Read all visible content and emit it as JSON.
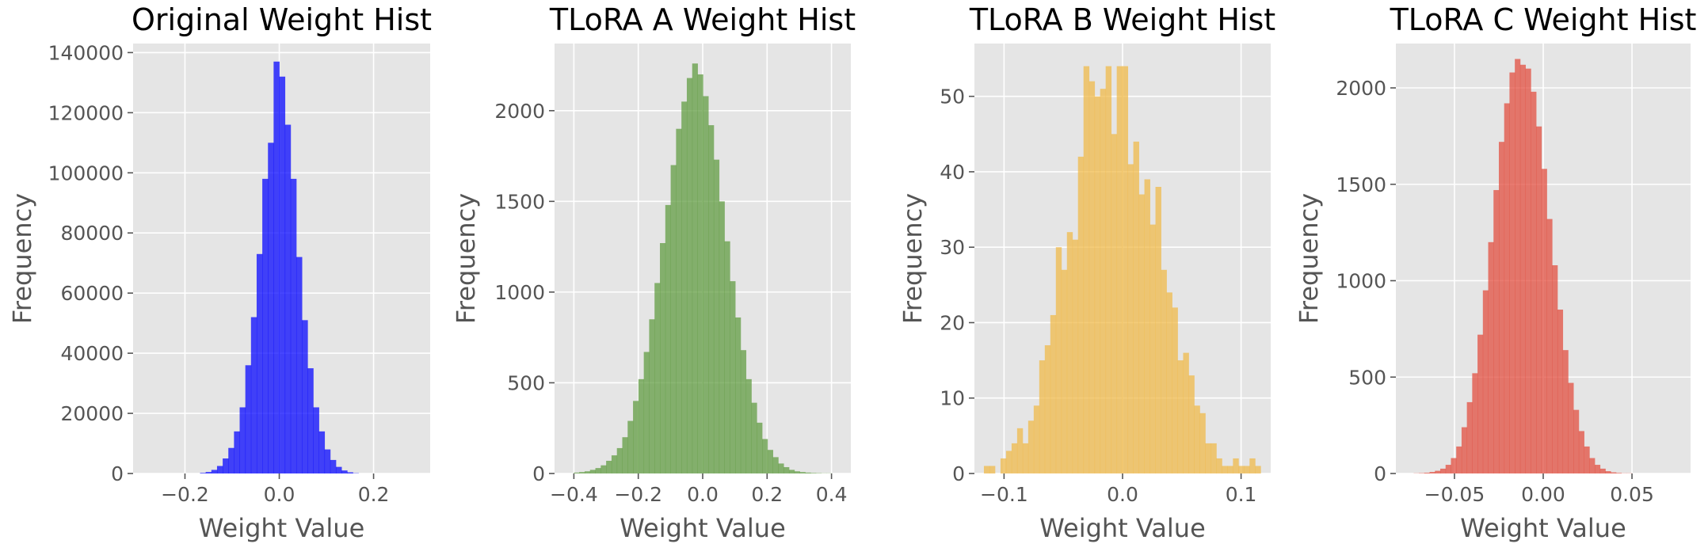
{
  "chart_data": [
    {
      "type": "bar",
      "title": "Original Weight Hist",
      "xlabel": "Weight Value",
      "ylabel": "Frequency",
      "xlim": [
        -0.31,
        0.32
      ],
      "ylim": [
        0,
        143000
      ],
      "xticks": [
        -0.2,
        0.0,
        0.2
      ],
      "xtick_labels": [
        "−0.2",
        "0.0",
        "0.2"
      ],
      "yticks": [
        0,
        20000,
        40000,
        60000,
        80000,
        100000,
        120000,
        140000
      ],
      "ytick_labels": [
        "0",
        "20000",
        "40000",
        "60000",
        "80000",
        "100000",
        "120000",
        "140000"
      ],
      "grid": true,
      "color": "#0000ff",
      "bin_start": -0.18,
      "bin_width": 0.012,
      "values": [
        0,
        200,
        500,
        1200,
        2500,
        5000,
        8500,
        14000,
        22000,
        36000,
        52000,
        73000,
        98000,
        110000,
        137000,
        132000,
        116000,
        98000,
        72000,
        51000,
        35000,
        22000,
        14000,
        8000,
        4500,
        2200,
        1000,
        400,
        100,
        0
      ]
    },
    {
      "type": "bar",
      "title": "TLoRA A Weight Hist",
      "xlabel": "Weight Value",
      "ylabel": "Frequency",
      "xlim": [
        -0.46,
        0.46
      ],
      "ylim": [
        0,
        2370
      ],
      "xticks": [
        -0.4,
        -0.2,
        0.0,
        0.2,
        0.4
      ],
      "xtick_labels": [
        "−0.4",
        "−0.2",
        "0.0",
        "0.2",
        "0.4"
      ],
      "yticks": [
        0,
        500,
        1000,
        1500,
        2000
      ],
      "ytick_labels": [
        "0",
        "500",
        "1000",
        "1500",
        "2000"
      ],
      "grid": true,
      "color": "#5d9a3d",
      "bin_start": -0.4,
      "bin_width": 0.0167,
      "values": [
        5,
        8,
        12,
        20,
        30,
        45,
        70,
        100,
        140,
        200,
        290,
        400,
        520,
        670,
        850,
        1050,
        1270,
        1480,
        1700,
        1900,
        2050,
        2180,
        2260,
        2200,
        2080,
        1920,
        1730,
        1500,
        1280,
        1060,
        860,
        680,
        520,
        390,
        280,
        190,
        130,
        90,
        55,
        35,
        20,
        12,
        8,
        5,
        3,
        2,
        1,
        1
      ]
    },
    {
      "type": "bar",
      "title": "TLoRA B Weight Hist",
      "xlabel": "Weight Value",
      "ylabel": "Frequency",
      "xlim": [
        -0.125,
        0.125
      ],
      "ylim": [
        0,
        57
      ],
      "xticks": [
        -0.1,
        0.0,
        0.1
      ],
      "xtick_labels": [
        "−0.1",
        "0.0",
        "0.1"
      ],
      "yticks": [
        0,
        10,
        20,
        30,
        40,
        50
      ],
      "ytick_labels": [
        "0",
        "10",
        "20",
        "30",
        "40",
        "50"
      ],
      "grid": true,
      "color": "#f0b845",
      "bin_start": -0.117,
      "bin_width": 0.00467,
      "values": [
        1,
        1,
        0,
        2,
        3,
        4,
        6,
        4,
        7,
        9,
        15,
        17,
        21,
        30,
        27,
        32,
        31,
        42,
        54,
        52,
        50,
        51,
        54,
        45,
        54,
        54,
        41,
        44,
        37,
        39,
        33,
        38,
        27,
        24,
        22,
        15,
        16,
        13,
        9,
        8,
        4,
        4,
        2,
        1,
        1,
        2,
        1,
        1,
        2,
        1
      ]
    },
    {
      "type": "bar",
      "title": "TLoRA C Weight Hist",
      "xlabel": "Weight Value",
      "ylabel": "Frequency",
      "xlim": [
        -0.083,
        0.083
      ],
      "ylim": [
        0,
        2230
      ],
      "xticks": [
        -0.05,
        0.0,
        0.05
      ],
      "xtick_labels": [
        "−0.05",
        "0.00",
        "0.05"
      ],
      "yticks": [
        0,
        500,
        1000,
        1500,
        2000
      ],
      "ytick_labels": [
        "0",
        "500",
        "1000",
        "1500",
        "2000"
      ],
      "grid": true,
      "color": "#e24a3a",
      "bin_start": -0.073,
      "bin_width": 0.003,
      "values": [
        1,
        2,
        4,
        8,
        14,
        25,
        45,
        80,
        140,
        240,
        370,
        520,
        720,
        950,
        1200,
        1470,
        1720,
        1920,
        2080,
        2150,
        2120,
        2100,
        1980,
        1800,
        1580,
        1320,
        1080,
        850,
        640,
        470,
        330,
        220,
        140,
        80,
        45,
        25,
        12,
        6,
        3,
        1,
        1
      ]
    }
  ]
}
